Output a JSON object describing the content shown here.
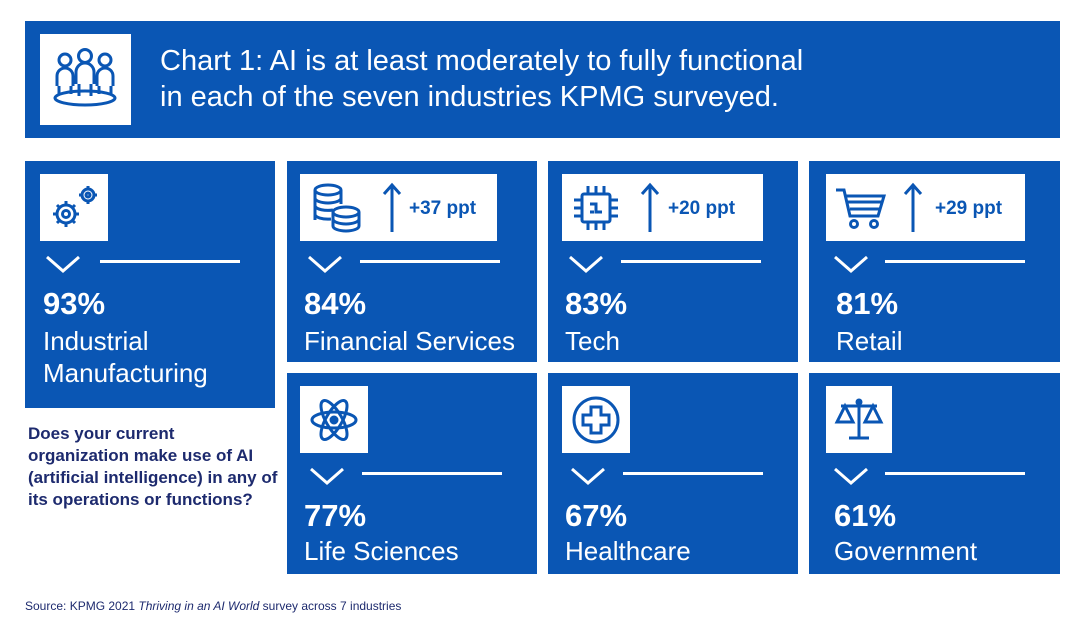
{
  "header": {
    "title_line1": "Chart 1: AI is at least moderately to fully functional",
    "title_line2": "in each of the seven industries KPMG surveyed.",
    "icon": "people-group-icon"
  },
  "question": "Does your current organization make use of AI (artificial intelligence) in any of its operations or functions?",
  "source": {
    "prefix": "Source: KPMG 2021 ",
    "italic": "Thriving in an AI World",
    "suffix": " survey across 7 industries"
  },
  "colors": {
    "tile": "#0a56b4",
    "text_dark": "#1d2a6e",
    "background": "#ffffff"
  },
  "chart_data": {
    "type": "table",
    "categories": [
      "Industrial Manufacturing",
      "Financial Services",
      "Tech",
      "Retail",
      "Life Sciences",
      "Healthcare",
      "Government"
    ],
    "values": [
      93,
      84,
      83,
      81,
      77,
      67,
      61
    ],
    "value_labels": [
      "93%",
      "84%",
      "83%",
      "81%",
      "77%",
      "67%",
      "61%"
    ],
    "changes": {
      "Financial Services": "+37 ppt",
      "Tech": "+20 ppt",
      "Retail": "+29 ppt"
    },
    "icons": [
      "gears-icon",
      "coins-icon",
      "chip-icon",
      "cart-icon",
      "atom-icon",
      "medical-cross-icon",
      "scales-icon"
    ]
  },
  "tiles": [
    {
      "pct": "93%",
      "name_line1": "Industrial",
      "name_line2": "Manufacturing",
      "ppt": null
    },
    {
      "pct": "84%",
      "name_line1": "Financial Services",
      "ppt": "+37 ppt"
    },
    {
      "pct": "83%",
      "name_line1": "Tech",
      "ppt": "+20 ppt"
    },
    {
      "pct": "81%",
      "name_line1": "Retail",
      "ppt": "+29 ppt"
    },
    {
      "pct": "77%",
      "name_line1": "Life Sciences",
      "ppt": null
    },
    {
      "pct": "67%",
      "name_line1": "Healthcare",
      "ppt": null
    },
    {
      "pct": "61%",
      "name_line1": "Government",
      "ppt": null
    }
  ]
}
